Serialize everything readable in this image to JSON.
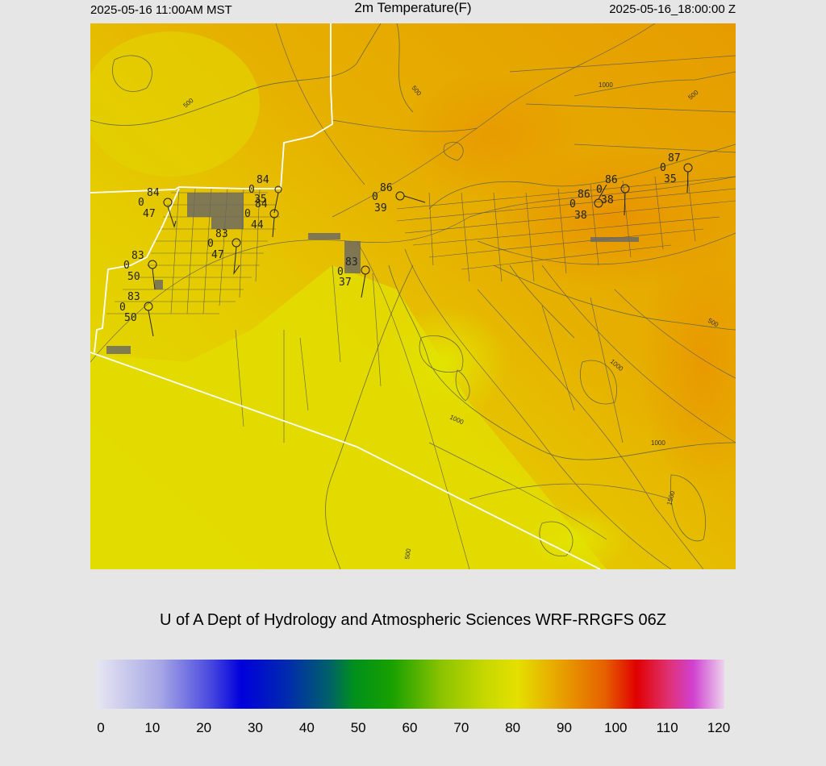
{
  "header": {
    "left_time": "2025-05-16 11:00AM MST",
    "title": "2m Temperature(F)",
    "right_time": "2025-05-16_18:00:00 Z"
  },
  "credit": "U of A Dept of Hydrology and Atmospheric Sciences WRF-RRGFS 06Z",
  "colorbar": {
    "ticks": [
      "0",
      "10",
      "20",
      "30",
      "40",
      "50",
      "60",
      "70",
      "80",
      "90",
      "100",
      "110",
      "120"
    ],
    "min": 0,
    "max": 120
  },
  "contour_labels": [
    "500",
    "500",
    "1000",
    "500",
    "1000",
    "1000",
    "500",
    "1000",
    "500",
    "1500"
  ],
  "stations": [
    {
      "temp": "84",
      "wind": "0",
      "dew": "47"
    },
    {
      "temp": "84",
      "wind": "0",
      "dew": "35"
    },
    {
      "temp": "84",
      "wind": "0",
      "dew": "44"
    },
    {
      "temp": "83",
      "wind": "0",
      "dew": "47"
    },
    {
      "temp": "83",
      "wind": "0",
      "dew": "50"
    },
    {
      "temp": "83",
      "wind": "0",
      "dew": "50"
    },
    {
      "temp": "83",
      "wind": "0",
      "dew": "37"
    },
    {
      "temp": "86",
      "wind": "0",
      "dew": "39"
    },
    {
      "temp": "86",
      "wind": "0",
      "dew": "38"
    },
    {
      "temp": "86",
      "wind": "0",
      "dew": "38"
    },
    {
      "temp": "87",
      "wind": "0",
      "dew": "35"
    }
  ],
  "colors": {
    "hot_orange": "#e8a000",
    "warm_yellow": "#e3c400",
    "cool_yellow": "#e2e000",
    "border": "#ffffff",
    "roads": "#555555"
  }
}
